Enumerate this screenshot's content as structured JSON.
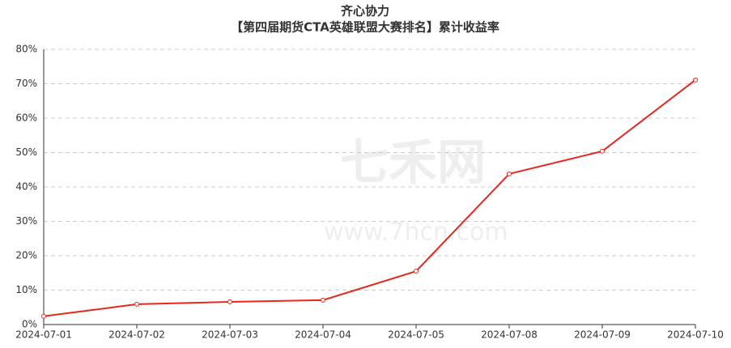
{
  "chart_data": {
    "type": "line",
    "title": "齐心协力",
    "subtitle": "【第四届期货CTA英雄联盟大赛排名】累计收益率",
    "watermark": "七禾网",
    "watermark_url": "www.7hcn.com",
    "categories": [
      "2024-07-01",
      "2024-07-02",
      "2024-07-03",
      "2024-07-04",
      "2024-07-05",
      "2024-07-08",
      "2024-07-09",
      "2024-07-10"
    ],
    "series": [
      {
        "name": "累计收益率",
        "color": "#e8261c",
        "values": [
          2.4,
          5.9,
          6.6,
          7.1,
          15.5,
          43.8,
          50.4,
          71.1
        ]
      }
    ],
    "ylim": [
      0,
      80
    ],
    "yticks": [
      {
        "value": 0,
        "label": "0%"
      },
      {
        "value": 10,
        "label": "10%"
      },
      {
        "value": 20,
        "label": "20%"
      },
      {
        "value": 30,
        "label": "30%"
      },
      {
        "value": 40,
        "label": "40%"
      },
      {
        "value": 50,
        "label": "50%"
      },
      {
        "value": 60,
        "label": "60%"
      },
      {
        "value": 70,
        "label": "70%"
      },
      {
        "value": 80,
        "label": "80%"
      }
    ],
    "grid": true
  }
}
